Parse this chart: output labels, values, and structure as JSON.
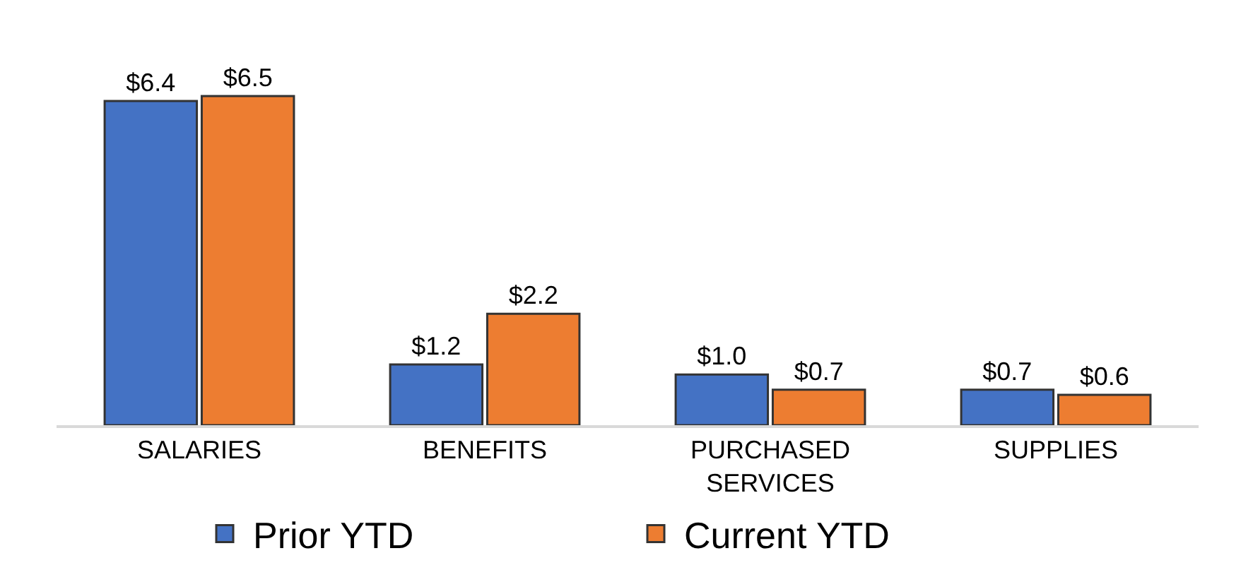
{
  "chart_data": {
    "type": "bar",
    "categories": [
      "SALARIES",
      "BENEFITS",
      "PURCHASED SERVICES",
      "SUPPLIES"
    ],
    "series": [
      {
        "name": "Prior YTD",
        "color": "#4472c4",
        "values": [
          6.4,
          1.2,
          1.0,
          0.7
        ],
        "value_labels": [
          "$6.4",
          "$1.2",
          "$1.0",
          "$0.7"
        ]
      },
      {
        "name": "Current YTD",
        "color": "#ed7d31",
        "values": [
          6.5,
          2.2,
          0.7,
          0.6
        ],
        "value_labels": [
          "$6.5",
          "$2.2",
          "$0.7",
          "$0.6"
        ]
      }
    ],
    "legend": "bottom",
    "grid": false
  }
}
